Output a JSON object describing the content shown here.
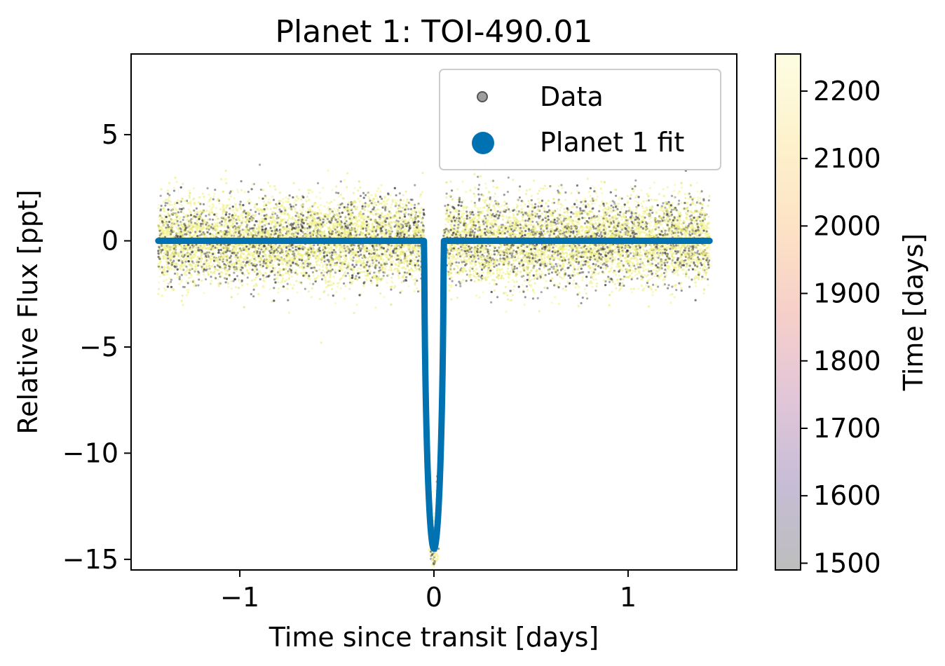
{
  "chart_data": {
    "type": "scatter",
    "title": "Planet 1: TOI-490.01",
    "xlabel": "Time since transit [days]",
    "ylabel": "Relative Flux [ppt]",
    "xlim": [
      -1.56,
      1.56
    ],
    "ylim": [
      -15.5,
      8.8
    ],
    "xticks": [
      -1,
      0,
      1
    ],
    "xtick_labels": [
      "−1",
      "0",
      "1"
    ],
    "yticks": [
      5,
      0,
      -5,
      -10,
      -15
    ],
    "ytick_labels": [
      "5",
      "0",
      "−5",
      "−10",
      "−15"
    ],
    "grid": false,
    "legend_position": "top-right",
    "series": [
      {
        "name": "Data",
        "kind": "scatter",
        "color_by": "time",
        "x_range": [
          -1.42,
          1.42
        ],
        "flux_scatter_ppt": 1.0,
        "point_count": 14000,
        "legend_color": "#9e9e9e"
      },
      {
        "name": "Planet 1 fit",
        "kind": "line",
        "color": "#0072b2",
        "baseline": 0,
        "transit_depth_ppt": 14.5,
        "transit_duration_days": 0.1,
        "x_range": [
          -1.42,
          1.42
        ]
      }
    ],
    "colorbar": {
      "label": "Time [days]",
      "vmin": 1490,
      "vmax": 2255,
      "ticks": [
        1500,
        1600,
        1700,
        1800,
        1900,
        2000,
        2100,
        2200
      ],
      "tick_labels": [
        "1500",
        "1600",
        "1700",
        "1800",
        "1900",
        "2000",
        "2100",
        "2200"
      ],
      "colormap_stops": [
        "#bdbdbd",
        "#c6bdd6",
        "#e2c6d8",
        "#f6cfc9",
        "#fde3c5",
        "#fdf2cc",
        "#fdfde3"
      ]
    }
  }
}
